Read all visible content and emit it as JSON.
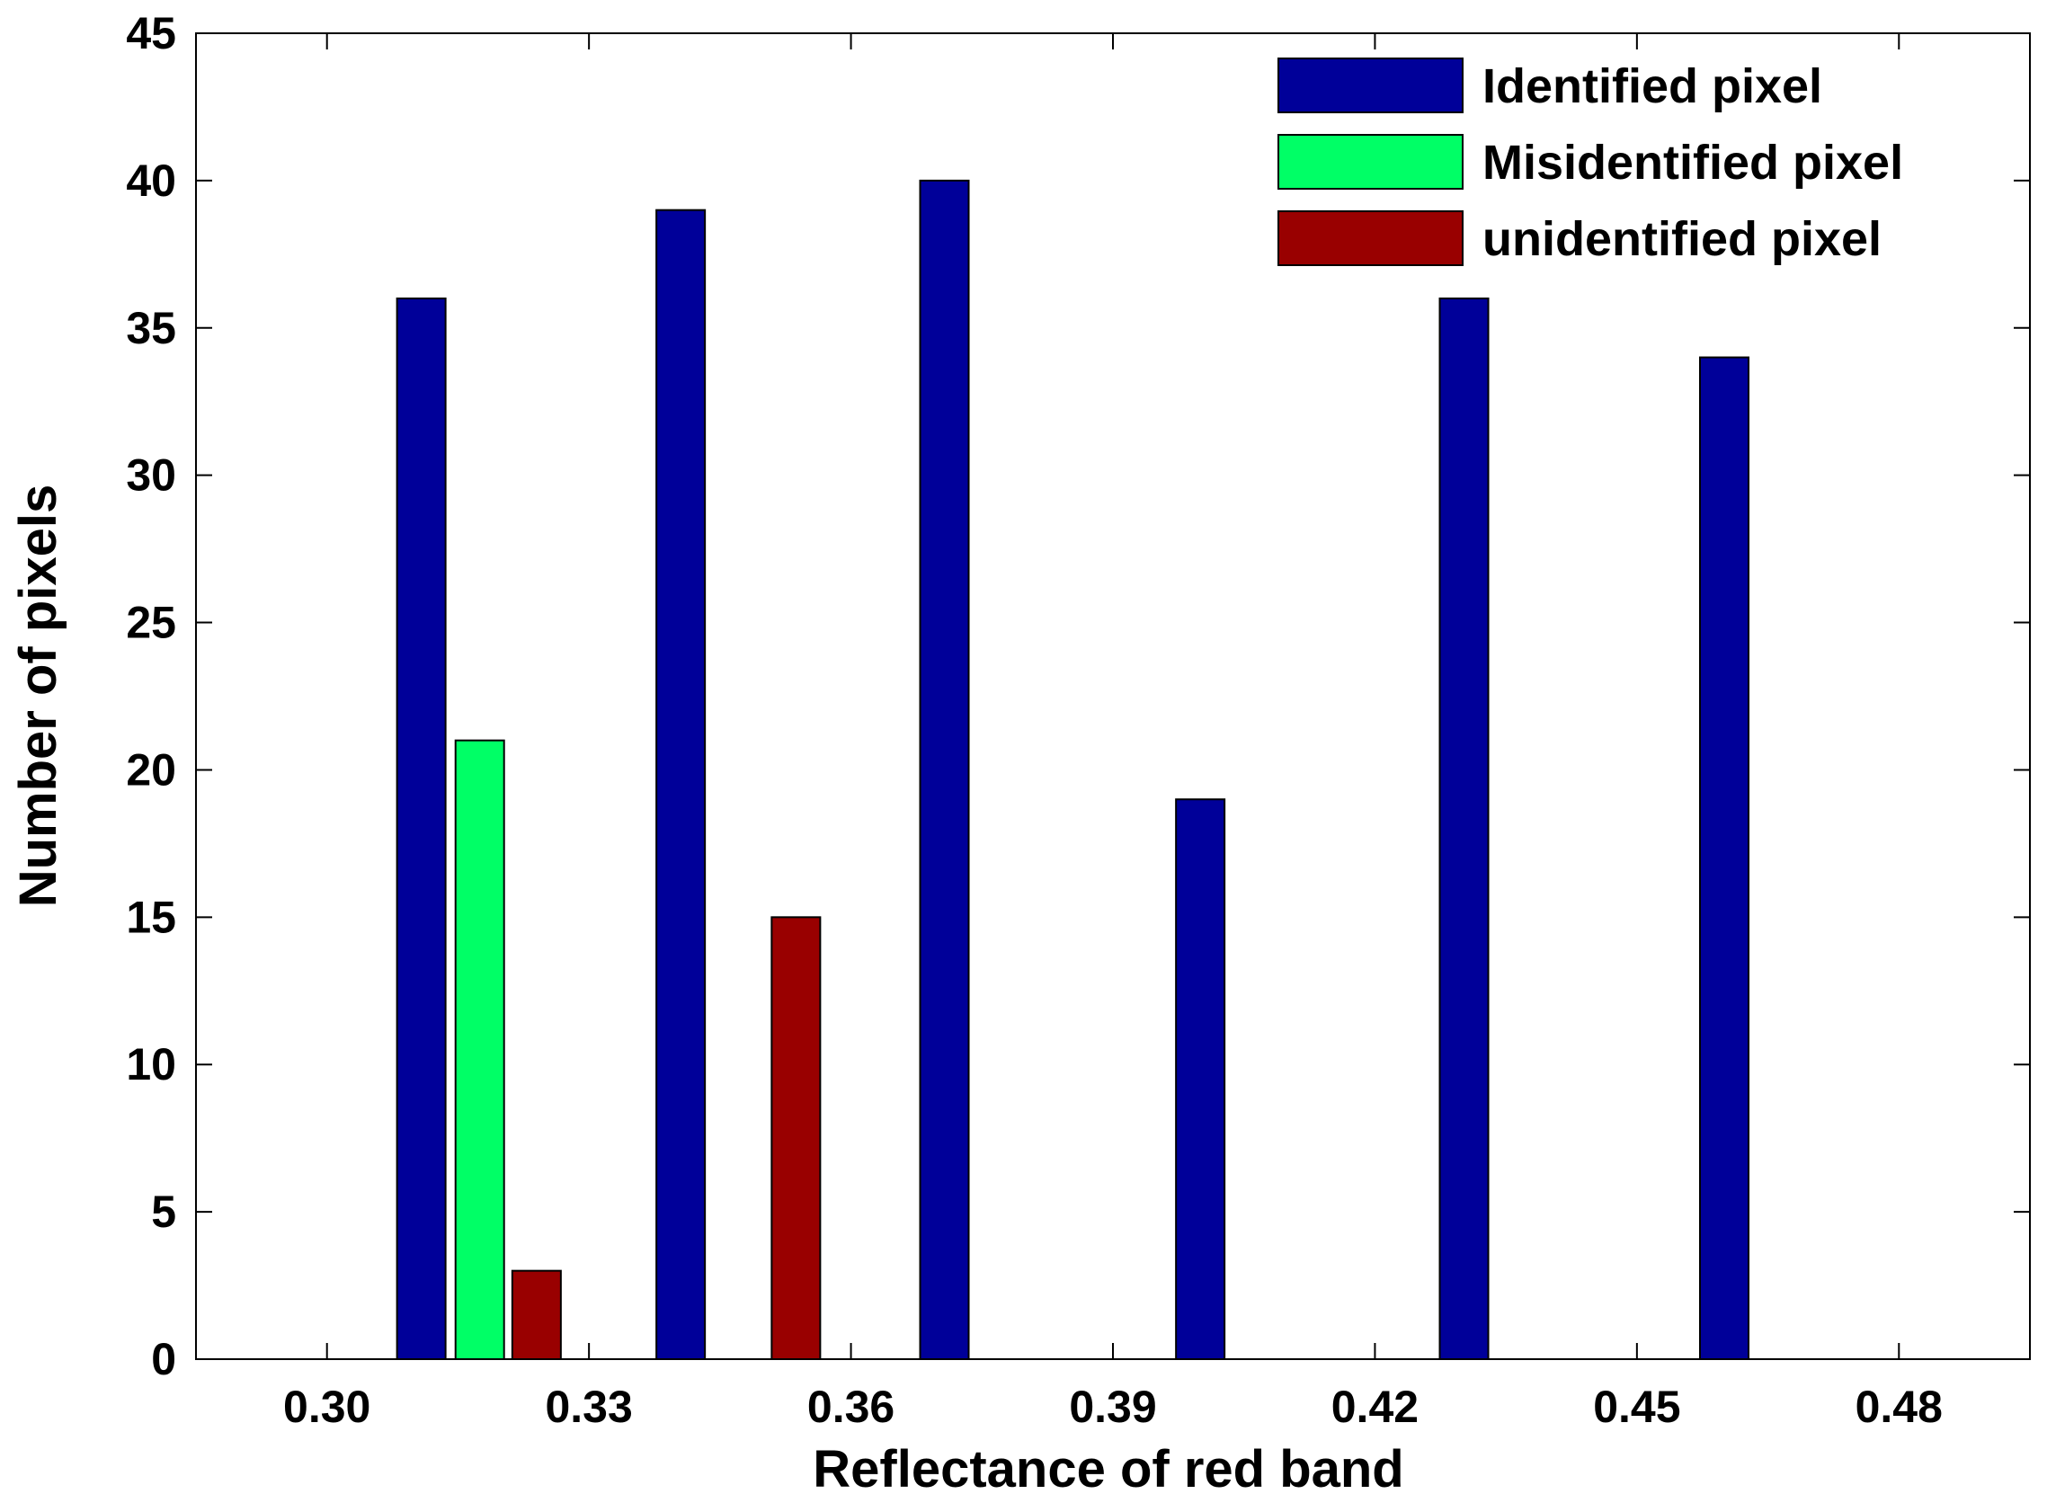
{
  "chart_data": {
    "type": "bar",
    "title": "",
    "xlabel": "Reflectance of red band",
    "ylabel": "Number of pixels",
    "xlim": [
      0.285,
      0.495
    ],
    "ylim": [
      0,
      45
    ],
    "xticks": [
      "0.30",
      "0.33",
      "0.36",
      "0.39",
      "0.42",
      "0.45",
      "0.48"
    ],
    "xtick_values": [
      0.3,
      0.33,
      0.36,
      0.39,
      0.42,
      0.45,
      0.48
    ],
    "yticks": [
      "0",
      "5",
      "10",
      "15",
      "20",
      "25",
      "30",
      "35",
      "40",
      "45"
    ],
    "ytick_values": [
      0,
      5,
      10,
      15,
      20,
      25,
      30,
      35,
      40,
      45
    ],
    "legend_position": "top-right",
    "series": [
      {
        "name": "Identified pixel",
        "color": "#000099",
        "points": [
          {
            "x": 0.3108,
            "y": 36
          },
          {
            "x": 0.3405,
            "y": 39
          },
          {
            "x": 0.3707,
            "y": 40
          },
          {
            "x": 0.4,
            "y": 19
          },
          {
            "x": 0.4302,
            "y": 36
          },
          {
            "x": 0.46,
            "y": 34
          }
        ]
      },
      {
        "name": "Misidentified pixel",
        "color": "#00FF66",
        "points": [
          {
            "x": 0.3175,
            "y": 21
          }
        ]
      },
      {
        "name": "unidentified pixel",
        "color": "#990000",
        "points": [
          {
            "x": 0.324,
            "y": 3
          },
          {
            "x": 0.3537,
            "y": 15
          }
        ]
      }
    ]
  }
}
